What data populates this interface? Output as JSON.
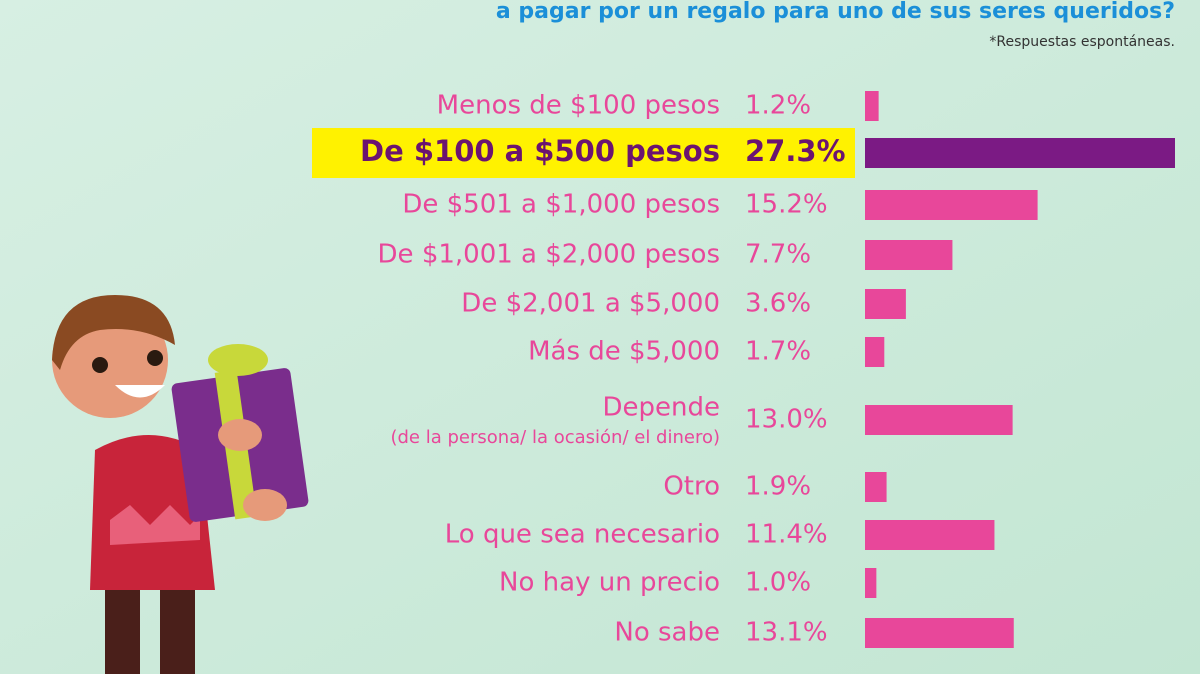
{
  "chart_data": {
    "type": "bar",
    "title": "a pagar por un regalo para uno de sus seres queridos?",
    "note": "*Respuestas espontáneas.",
    "categories": [
      "Menos de $100 pesos",
      "De $100 a $500 pesos",
      "De $501 a $1,000 pesos",
      "De $1,001 a $2,000 pesos",
      "De $2,001 a $5,000",
      "Más de $5,000",
      "Depende",
      "Otro",
      "Lo que sea necesario",
      "No hay un precio",
      "No sabe"
    ],
    "category_notes": [
      null,
      null,
      null,
      null,
      null,
      null,
      "(de la persona/ la ocasión/ el dinero)",
      null,
      null,
      null,
      null
    ],
    "values": [
      1.2,
      27.3,
      15.2,
      7.7,
      3.6,
      1.7,
      13.0,
      1.9,
      11.4,
      1.0,
      13.1
    ],
    "value_labels": [
      "1.2%",
      "27.3%",
      "15.2%",
      "7.7%",
      "3.6%",
      "1.7%",
      "13.0%",
      "1.9%",
      "11.4%",
      "1.0%",
      "13.1%"
    ],
    "colors": [
      "#e8479a",
      "#7b1a84",
      "#e8479a",
      "#e8479a",
      "#e8479a",
      "#e8479a",
      "#e8479a",
      "#e8479a",
      "#e8479a",
      "#e8479a",
      "#e8479a"
    ],
    "highlight_color": "#fff200"
  }
}
